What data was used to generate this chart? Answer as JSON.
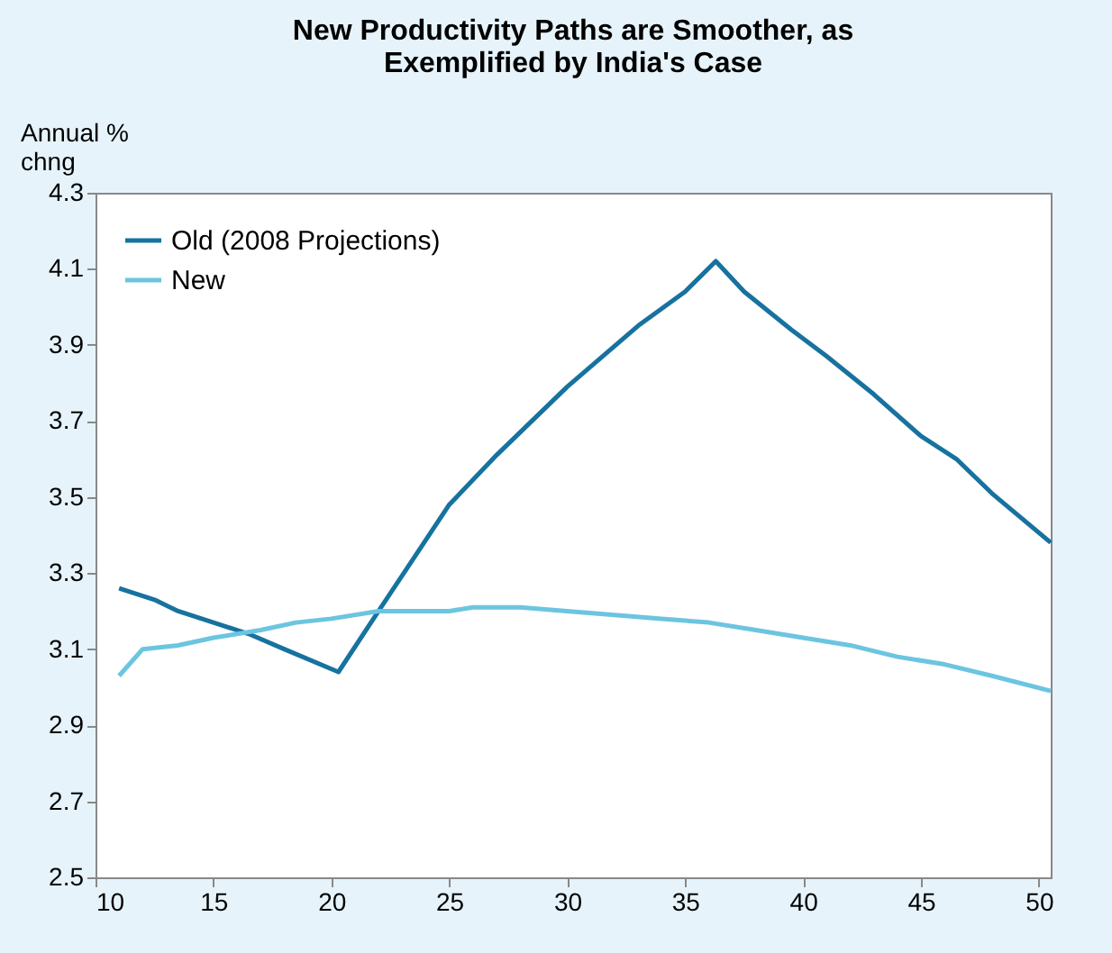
{
  "chart_data": {
    "type": "line",
    "title": "New Productivity Paths are Smoother, as Exemplified by India's Case",
    "ylabel": "Annual % chng",
    "xlim": [
      10,
      50.5
    ],
    "xticks": [
      10,
      15,
      20,
      25,
      30,
      35,
      40,
      45,
      50
    ],
    "ylim": [
      2.5,
      4.3
    ],
    "yticks": [
      2.5,
      2.7,
      2.9,
      3.1,
      3.3,
      3.5,
      3.7,
      3.9,
      4.1,
      4.3
    ],
    "grid": false,
    "legend": "top left",
    "marker": "none",
    "line_style": "solid",
    "series": [
      {
        "name": "Old (2008 Projections)",
        "color": "#17729f",
        "x": [
          11,
          12.5,
          13.5,
          15,
          16.5,
          18,
          20.3,
          22,
          23.5,
          25,
          27,
          30,
          33,
          35,
          36.3,
          37.5,
          39.5,
          41,
          43,
          45,
          46.5,
          48,
          50.5
        ],
        "values": [
          3.26,
          3.23,
          3.2,
          3.17,
          3.14,
          3.1,
          3.04,
          3.2,
          3.34,
          3.48,
          3.61,
          3.79,
          3.95,
          4.04,
          4.12,
          4.04,
          3.94,
          3.87,
          3.77,
          3.66,
          3.6,
          3.51,
          3.38
        ]
      },
      {
        "name": "New",
        "color": "#6cc5e0",
        "x": [
          11,
          12,
          13.5,
          15,
          17,
          18.5,
          20,
          22,
          25,
          26,
          28,
          30,
          32,
          34,
          36,
          38,
          40,
          42,
          44,
          46,
          48,
          50.5
        ],
        "values": [
          3.03,
          3.1,
          3.11,
          3.13,
          3.15,
          3.17,
          3.18,
          3.2,
          3.2,
          3.21,
          3.21,
          3.2,
          3.19,
          3.18,
          3.17,
          3.15,
          3.13,
          3.11,
          3.08,
          3.06,
          3.03,
          2.99
        ]
      }
    ]
  }
}
